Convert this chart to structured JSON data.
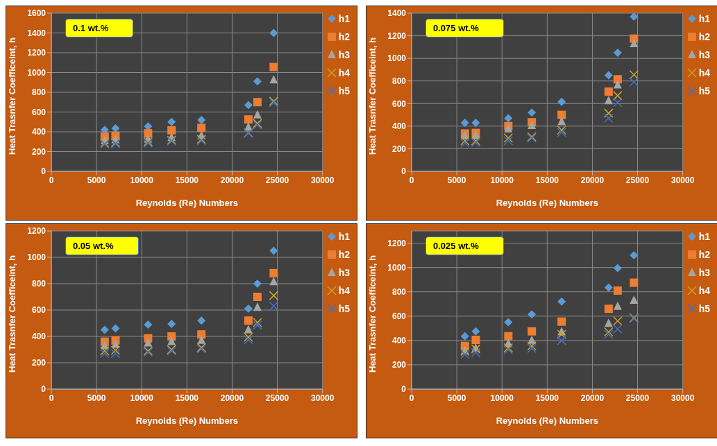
{
  "chart_data": [
    {
      "type": "scatter",
      "title": "0.1 wt.%",
      "xlabel": "Reynolds (Re) Numbers",
      "ylabel": "Heat Trasnfer Coefficeint, h",
      "x": [
        5900,
        7100,
        10700,
        13300,
        16600,
        21800,
        22800,
        24600
      ],
      "xlim": [
        0,
        30000
      ],
      "xticks": [
        0,
        5000,
        10000,
        15000,
        20000,
        25000,
        30000
      ],
      "ylim": [
        0,
        1600
      ],
      "yticks": [
        0,
        200,
        400,
        600,
        800,
        1000,
        1200,
        1400,
        1600
      ],
      "grid": true,
      "legend": "right",
      "series": [
        {
          "name": "h1",
          "color": "#5b9bd5",
          "marker": "diamond",
          "values": [
            420,
            435,
            455,
            500,
            520,
            670,
            910,
            1400
          ]
        },
        {
          "name": "h2",
          "color": "#ed7d31",
          "marker": "square",
          "values": [
            350,
            360,
            385,
            415,
            440,
            525,
            700,
            1055
          ]
        },
        {
          "name": "h3",
          "color": "#a5a5a5",
          "marker": "triangle",
          "values": [
            310,
            320,
            325,
            340,
            360,
            445,
            570,
            925
          ]
        },
        {
          "name": "h4",
          "color": "#c9a227",
          "marker": "cross",
          "values": [
            285,
            290,
            300,
            315,
            325,
            390,
            485,
            710
          ]
        },
        {
          "name": "h5",
          "color": "#4472c4",
          "marker": "cross",
          "values": [
            275,
            280,
            285,
            305,
            310,
            385,
            470,
            695
          ]
        }
      ]
    },
    {
      "type": "scatter",
      "title": "0.075 wt.%",
      "xlabel": "Reynolds (Re) Numbers",
      "ylabel": "Heat Trasnfer Coefficeint, h",
      "x": [
        5900,
        7100,
        10700,
        13300,
        16600,
        21800,
        22800,
        24600
      ],
      "xlim": [
        0,
        30000
      ],
      "xticks": [
        0,
        5000,
        10000,
        15000,
        20000,
        25000,
        30000
      ],
      "ylim": [
        0,
        1400
      ],
      "yticks": [
        0,
        200,
        400,
        600,
        800,
        1000,
        1200,
        1400
      ],
      "grid": true,
      "legend": "right",
      "series": [
        {
          "name": "h1",
          "color": "#5b9bd5",
          "marker": "diamond",
          "values": [
            430,
            430,
            470,
            520,
            615,
            850,
            1050,
            1370
          ]
        },
        {
          "name": "h2",
          "color": "#ed7d31",
          "marker": "square",
          "values": [
            335,
            340,
            400,
            435,
            500,
            705,
            815,
            1175
          ]
        },
        {
          "name": "h3",
          "color": "#a5a5a5",
          "marker": "triangle",
          "values": [
            315,
            320,
            375,
            405,
            440,
            625,
            765,
            1130
          ]
        },
        {
          "name": "h4",
          "color": "#c9a227",
          "marker": "cross",
          "values": [
            270,
            270,
            295,
            305,
            365,
            515,
            670,
            855
          ]
        },
        {
          "name": "h5",
          "color": "#4472c4",
          "marker": "cross",
          "values": [
            250,
            255,
            270,
            295,
            345,
            470,
            610,
            790
          ]
        }
      ]
    },
    {
      "type": "scatter",
      "title": "0.05 wt.%",
      "xlabel": "Reynolds (Re) Numbers",
      "ylabel": "Heat Trasnfer Coefficeint, h",
      "x": [
        5900,
        7100,
        10700,
        13300,
        16600,
        21800,
        22800,
        24600
      ],
      "xlim": [
        0,
        30000
      ],
      "xticks": [
        0,
        5000,
        10000,
        15000,
        20000,
        25000,
        30000
      ],
      "ylim": [
        0,
        1200
      ],
      "yticks": [
        0,
        200,
        400,
        600,
        800,
        1000,
        1200
      ],
      "grid": true,
      "legend": "right",
      "series": [
        {
          "name": "h1",
          "color": "#5b9bd5",
          "marker": "diamond",
          "values": [
            450,
            460,
            490,
            495,
            520,
            610,
            800,
            1050
          ]
        },
        {
          "name": "h2",
          "color": "#ed7d31",
          "marker": "square",
          "values": [
            360,
            370,
            385,
            400,
            415,
            520,
            700,
            880
          ]
        },
        {
          "name": "h3",
          "color": "#a5a5a5",
          "marker": "triangle",
          "values": [
            330,
            340,
            350,
            360,
            370,
            450,
            620,
            815
          ]
        },
        {
          "name": "h4",
          "color": "#c9a227",
          "marker": "cross",
          "values": [
            290,
            295,
            290,
            300,
            315,
            395,
            505,
            710
          ]
        },
        {
          "name": "h5",
          "color": "#4472c4",
          "marker": "cross",
          "values": [
            270,
            270,
            280,
            290,
            305,
            375,
            485,
            630
          ]
        }
      ]
    },
    {
      "type": "scatter",
      "title": "0.025 wt.%",
      "xlabel": "Reynolds (Re) Numbers",
      "ylabel": "Heat Trasnfer Coefficeint, h",
      "x": [
        5900,
        7100,
        10700,
        13300,
        16600,
        21800,
        22800,
        24600
      ],
      "xlim": [
        0,
        30000
      ],
      "xticks": [
        0,
        5000,
        10000,
        15000,
        20000,
        25000,
        30000
      ],
      "ylim": [
        0,
        1300
      ],
      "yticks": [
        0,
        200,
        400,
        600,
        800,
        1000,
        1200
      ],
      "grid": true,
      "legend": "right",
      "series": [
        {
          "name": "h1",
          "color": "#5b9bd5",
          "marker": "diamond",
          "values": [
            435,
            475,
            550,
            615,
            720,
            835,
            995,
            1100
          ]
        },
        {
          "name": "h2",
          "color": "#ed7d31",
          "marker": "square",
          "values": [
            355,
            405,
            435,
            475,
            555,
            660,
            810,
            875
          ]
        },
        {
          "name": "h3",
          "color": "#a5a5a5",
          "marker": "triangle",
          "values": [
            315,
            335,
            375,
            400,
            470,
            540,
            680,
            730
          ]
        },
        {
          "name": "h4",
          "color": "#c9a227",
          "marker": "cross",
          "values": [
            310,
            330,
            340,
            355,
            450,
            470,
            560,
            585
          ]
        },
        {
          "name": "h5",
          "color": "#4472c4",
          "marker": "cross",
          "values": [
            285,
            300,
            325,
            335,
            400,
            450,
            495,
            580
          ]
        }
      ]
    }
  ]
}
